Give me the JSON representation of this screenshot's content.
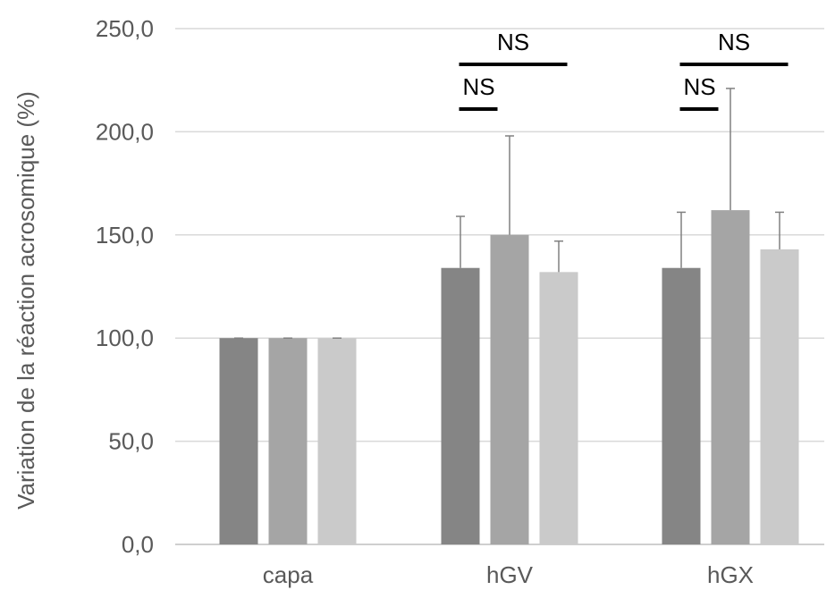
{
  "chart_data": {
    "type": "bar",
    "title": "",
    "xlabel": "",
    "ylabel": "Variation de la réaction acrosomique (%)",
    "ylim": [
      0,
      250
    ],
    "yticks": [
      "0,0",
      "50,0",
      "100,0",
      "150,0",
      "200,0",
      "250,0"
    ],
    "grid": true,
    "categories": [
      "capa",
      "hGV",
      "hGX"
    ],
    "series": [
      {
        "values": [
          100,
          134,
          134
        ],
        "error": [
          0,
          25,
          27
        ],
        "color": "#858585"
      },
      {
        "values": [
          100,
          150,
          162
        ],
        "error": [
          0,
          48,
          59
        ],
        "color": "#a5a5a5"
      },
      {
        "values": [
          100,
          132,
          143
        ],
        "error": [
          0,
          15,
          18
        ],
        "color": "#cacaca"
      }
    ],
    "annotations": [
      {
        "text": "NS",
        "category": "hGV",
        "from_series": 0,
        "to_series": 2,
        "level": "upper"
      },
      {
        "text": "NS",
        "category": "hGV",
        "from_series": 0,
        "to_series": 1,
        "level": "lower"
      },
      {
        "text": "NS",
        "category": "hGX",
        "from_series": 0,
        "to_series": 2,
        "level": "upper"
      },
      {
        "text": "NS",
        "category": "hGX",
        "from_series": 0,
        "to_series": 1,
        "level": "lower"
      }
    ]
  }
}
